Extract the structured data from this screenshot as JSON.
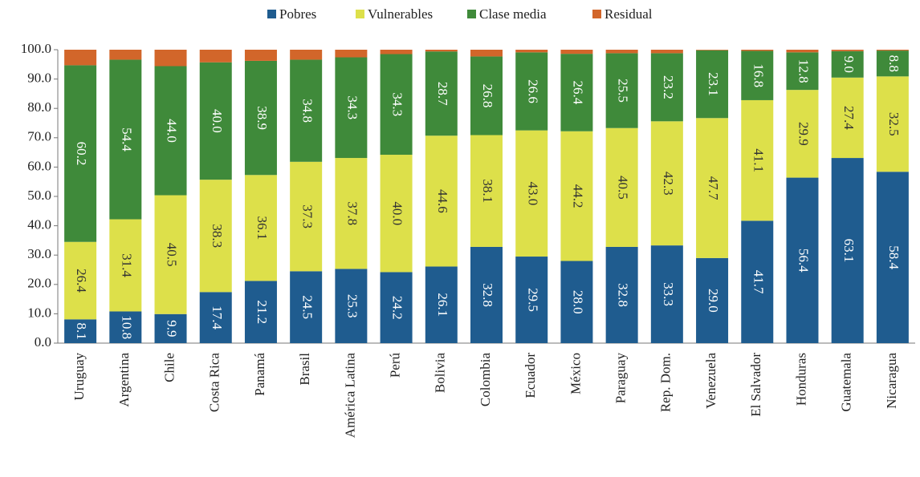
{
  "chart_data": {
    "type": "stacked_bar",
    "categories": [
      "Uruguay",
      "Argentina",
      "Chile",
      "Costa Rica",
      "Panamá",
      "Brasil",
      "América Latina",
      "Perú",
      "Bolivia",
      "Colombia",
      "Ecuador",
      "México",
      "Paraguay",
      "Rep. Dom.",
      "Venezuela",
      "El Salvador",
      "Honduras",
      "Guatemala",
      "Nicaragua"
    ],
    "series": [
      {
        "name": "Pobres",
        "color": "#1f5c8f",
        "values": [
          8.1,
          10.8,
          9.9,
          17.4,
          21.2,
          24.5,
          25.3,
          24.2,
          26.1,
          32.8,
          29.5,
          28.0,
          32.8,
          33.3,
          29.0,
          41.7,
          56.4,
          63.1,
          58.4
        ],
        "value_labels": [
          "8.1",
          "10.8",
          "9.9",
          "17.4",
          "21.2",
          "24.5",
          "25.3",
          "24.2",
          "26.1",
          "32.8",
          "29.5",
          "28.0",
          "32.8",
          "33.3",
          "29.0",
          "41.7",
          "56.4",
          "63.1",
          "58.4"
        ]
      },
      {
        "name": "Vulnerables",
        "color": "#dde04a",
        "values": [
          26.4,
          31.4,
          40.5,
          38.3,
          36.1,
          37.3,
          37.8,
          40.0,
          44.6,
          38.1,
          43.0,
          44.2,
          40.5,
          42.3,
          47.7,
          41.1,
          29.9,
          27.4,
          32.5
        ],
        "value_labels": [
          "26.4",
          "31.4",
          "40.5",
          "38.3",
          "36.1",
          "37.3",
          "37.8",
          "40.0",
          "44.6",
          "38.1",
          "43.0",
          "44.2",
          "40.5",
          "42.3",
          "47.7",
          "41.1",
          "29.9",
          "27.4",
          "32.5"
        ]
      },
      {
        "name": "Clase media",
        "color": "#3f8a3a",
        "values": [
          60.2,
          54.4,
          44.0,
          40.0,
          38.9,
          34.8,
          34.3,
          34.3,
          28.7,
          26.8,
          26.6,
          26.4,
          25.5,
          23.2,
          23.1,
          16.8,
          12.8,
          9.0,
          8.8
        ],
        "value_labels": [
          "60.2",
          "54.4",
          "44.0",
          "40.0",
          "38.9",
          "34.8",
          "34.3",
          "34.3",
          "28.7",
          "26.8",
          "26.6",
          "26.4",
          "25.5",
          "23.2",
          "23.1",
          "16.8",
          "12.8",
          "9.0",
          "8.8"
        ]
      },
      {
        "name": "Residual",
        "color": "#d2662a",
        "values": [
          5.3,
          3.4,
          5.6,
          4.3,
          3.8,
          3.4,
          2.6,
          1.5,
          0.6,
          2.3,
          0.9,
          1.4,
          1.2,
          1.2,
          0.2,
          0.4,
          0.9,
          0.5,
          0.3
        ]
      }
    ],
    "ylim": [
      0,
      100
    ],
    "yticks": [
      {
        "value": 0,
        "label": "0.0"
      },
      {
        "value": 10,
        "label": "10.0"
      },
      {
        "value": 20,
        "label": "20.0"
      },
      {
        "value": 30,
        "label": "30.0"
      },
      {
        "value": 40,
        "label": "40.0"
      },
      {
        "value": 50,
        "label": "50.0"
      },
      {
        "value": 60,
        "label": "60.0"
      },
      {
        "value": 70,
        "label": "70.0"
      },
      {
        "value": 80,
        "label": "80.0"
      },
      {
        "value": 90,
        "label": "90.0"
      },
      {
        "value": 100,
        "label": "100.0"
      }
    ],
    "legend": "top"
  }
}
